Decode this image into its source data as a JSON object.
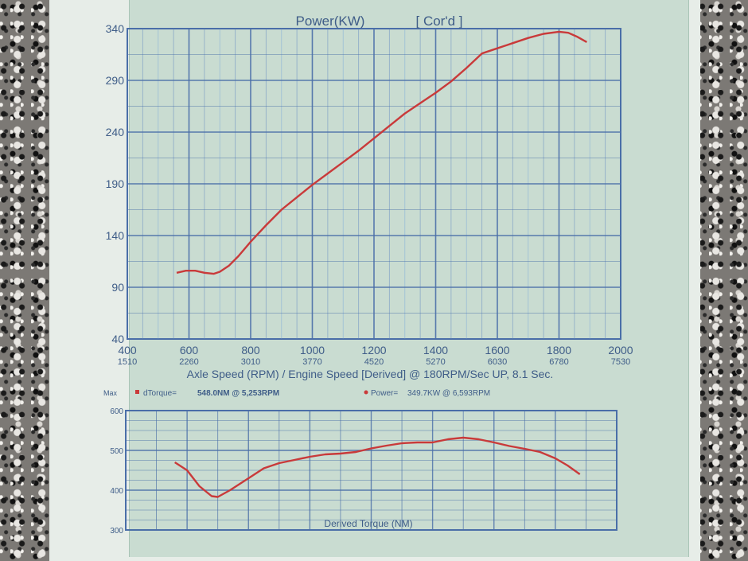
{
  "chart_data": [
    {
      "type": "line",
      "title": "Power(KW)",
      "title_tag": "[ Cor'd ]",
      "xlabel": "Axle Speed (RPM) / Engine Speed [Derived] @ 180RPM/Sec UP, 8.1 Sec.",
      "ylabel": "",
      "xlim": [
        400,
        2000
      ],
      "ylim": [
        40,
        340
      ],
      "x_ticks": [
        400,
        600,
        800,
        1000,
        1200,
        1400,
        1600,
        1800,
        2000
      ],
      "x_secondary_ticks": [
        "1510",
        "2260",
        "3010",
        "3770",
        "4520",
        "5270",
        "6030",
        "6780",
        "7530"
      ],
      "y_ticks": [
        40,
        90,
        140,
        190,
        240,
        290,
        340
      ],
      "grid": true,
      "series": [
        {
          "color": "#c93a3a",
          "x": [
            560,
            590,
            620,
            650,
            680,
            700,
            730,
            760,
            800,
            850,
            900,
            950,
            1000,
            1050,
            1100,
            1150,
            1200,
            1250,
            1300,
            1350,
            1400,
            1450,
            1500,
            1550,
            1600,
            1650,
            1700,
            1750,
            1800,
            1830,
            1860,
            1890
          ],
          "y": [
            104,
            106,
            106,
            104,
            103,
            105,
            111,
            120,
            134,
            150,
            165,
            177,
            189,
            200,
            211,
            222,
            234,
            246,
            258,
            268,
            278,
            289,
            302,
            316,
            321,
            326,
            331,
            335,
            337,
            336,
            332,
            327
          ]
        }
      ]
    },
    {
      "type": "line",
      "title": "Derived Torque (NM)",
      "xlim": [
        400,
        2000
      ],
      "ylim": [
        300,
        600
      ],
      "y_ticks": [
        300,
        400,
        500,
        600
      ],
      "grid": true,
      "legend": [
        {
          "label": "Max",
          "marker": "",
          "text": ""
        },
        {
          "label": "dTorque=",
          "value": "548.0NM @ 5,253RPM",
          "color": "#c93a3a"
        },
        {
          "label": "Power=",
          "value": "349.7KW @ 6,593RPM",
          "color": "#c93a3a"
        }
      ],
      "series": [
        {
          "color": "#c93a3a",
          "x": [
            560,
            600,
            640,
            680,
            700,
            740,
            800,
            850,
            900,
            950,
            1000,
            1050,
            1100,
            1150,
            1200,
            1250,
            1300,
            1350,
            1400,
            1450,
            1500,
            1550,
            1600,
            1650,
            1700,
            1750,
            1800,
            1840,
            1880
          ],
          "y": [
            470,
            450,
            410,
            385,
            383,
            400,
            430,
            455,
            468,
            476,
            484,
            490,
            492,
            496,
            505,
            512,
            518,
            520,
            520,
            528,
            532,
            528,
            520,
            511,
            504,
            496,
            480,
            462,
            440
          ]
        }
      ]
    }
  ]
}
